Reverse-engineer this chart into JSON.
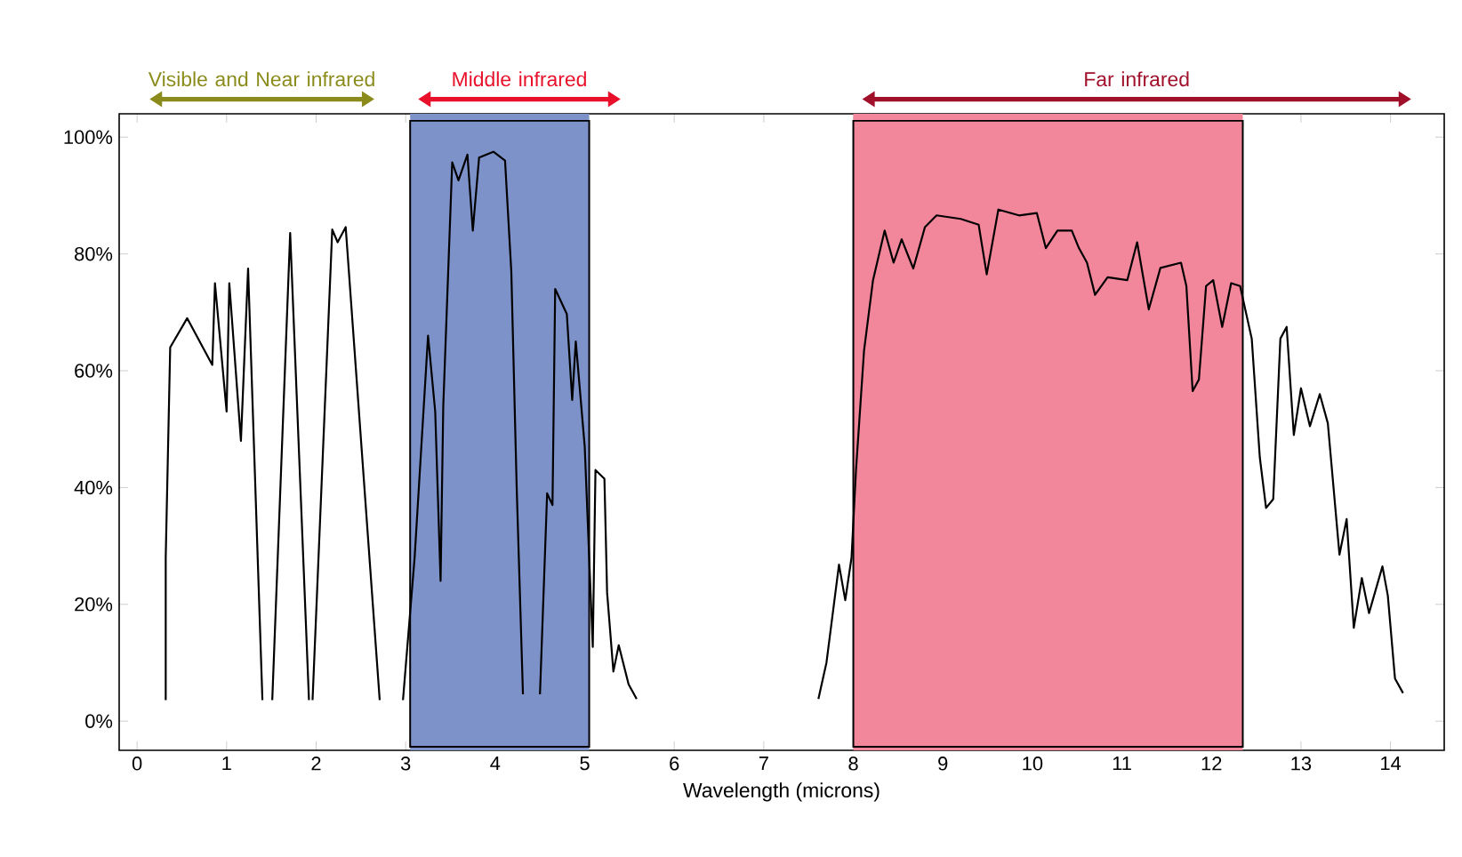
{
  "chart_data": {
    "type": "line",
    "xlabel": "Wavelength (microns)",
    "xlim": [
      -0.2,
      14.6
    ],
    "ylim": [
      -5,
      104
    ],
    "xticks": [
      0,
      1,
      2,
      3,
      4,
      5,
      6,
      7,
      8,
      9,
      10,
      11,
      12,
      13,
      14
    ],
    "yticks": [
      {
        "value": 0,
        "label": "0%"
      },
      {
        "value": 20,
        "label": "20%"
      },
      {
        "value": 40,
        "label": "40%"
      },
      {
        "value": 60,
        "label": "60%"
      },
      {
        "value": 80,
        "label": "80%"
      },
      {
        "value": 100,
        "label": "100%"
      }
    ],
    "bands": [
      {
        "axis": "x",
        "from": 3.05,
        "to": 5.05,
        "color": "#7d92c8"
      },
      {
        "axis": "x",
        "from": 8.0,
        "to": 12.35,
        "color": "#f2869a"
      }
    ],
    "annotations": [
      "Visible and Near infrared",
      "Middle infrared",
      "Far infrared"
    ],
    "series": [
      {
        "color": "#000000",
        "x": [
          0.32,
          0.32,
          0.37,
          0.56,
          0.84,
          0.87,
          1.0,
          1.03,
          1.16,
          1.24,
          1.4,
          1.45,
          1.51,
          1.71,
          1.92,
          1.94,
          1.96,
          2.18,
          2.24,
          2.33,
          2.71,
          2.85,
          2.97,
          3.1,
          3.25,
          3.33,
          3.39,
          3.42,
          3.52,
          3.59,
          3.69,
          3.75,
          3.82,
          3.98,
          4.11,
          4.18,
          4.24,
          4.31,
          4.4,
          4.5,
          4.58,
          4.64,
          4.67,
          4.8,
          4.86,
          4.9,
          5.0,
          5.09,
          5.12,
          5.22,
          5.25,
          5.32,
          5.38,
          5.49,
          5.58,
          6.6,
          7.61,
          7.7,
          7.84,
          7.91,
          7.98,
          8.03,
          8.12,
          8.22,
          8.35,
          8.45,
          8.54,
          8.67,
          8.8,
          8.93,
          9.2,
          9.4,
          9.49,
          9.62,
          9.85,
          10.05,
          10.15,
          10.28,
          10.44,
          10.52,
          10.61,
          10.7,
          10.84,
          11.06,
          11.17,
          11.3,
          11.43,
          11.66,
          11.72,
          11.79,
          11.86,
          11.94,
          12.02,
          12.12,
          12.22,
          12.32,
          12.45,
          12.54,
          12.61,
          12.69,
          12.77,
          12.84,
          12.92,
          13.0,
          13.1,
          13.21,
          13.3,
          13.43,
          13.51,
          13.59,
          13.68,
          13.76,
          13.91,
          13.97,
          14.05,
          14.14
        ],
        "values": [
          3.6,
          28,
          64,
          69,
          61,
          75,
          53,
          75,
          48,
          77.5,
          3.6,
          null,
          3.6,
          83.6,
          3.6,
          null,
          3.6,
          84.2,
          82,
          84.6,
          3.6,
          null,
          3.6,
          28,
          66,
          53,
          24,
          54,
          95.7,
          92.6,
          97,
          84,
          96.5,
          97.5,
          96,
          77,
          40,
          4.6,
          null,
          4.6,
          39,
          37,
          74,
          69.7,
          55,
          65,
          47,
          12.7,
          43,
          41.5,
          22,
          8.5,
          13,
          6.3,
          3.8,
          null,
          3.8,
          10,
          26.8,
          20.7,
          28,
          43,
          63.5,
          75.5,
          84,
          78.5,
          82.5,
          77.5,
          84.6,
          86.6,
          86,
          85,
          76.5,
          87.6,
          86.6,
          87,
          81,
          84,
          84,
          81,
          78.5,
          73,
          76,
          75.5,
          82,
          70.5,
          77.6,
          78.5,
          74.5,
          56.5,
          58.5,
          74.5,
          75.5,
          67.5,
          75,
          74.5,
          65.5,
          45.2,
          36.5,
          38,
          65.5,
          67.5,
          49,
          57,
          50.5,
          56,
          51,
          28.5,
          34.6,
          16,
          24.5,
          18.5,
          26.5,
          21.5,
          7.3,
          4.8
        ]
      }
    ]
  }
}
